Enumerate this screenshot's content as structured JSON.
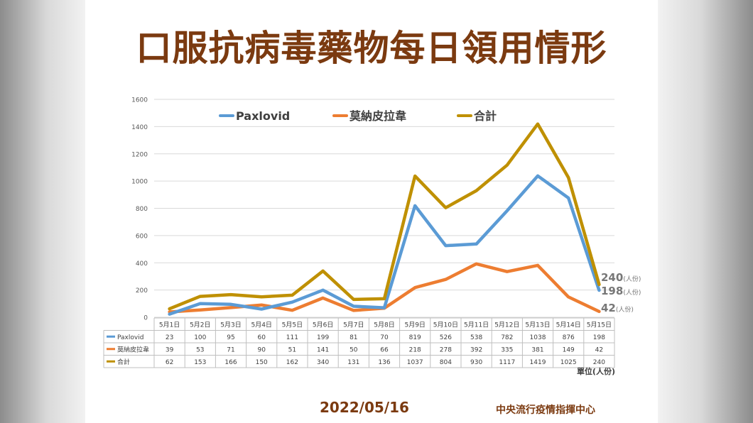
{
  "title": "口服抗病毒藥物每日領用情形",
  "footer": {
    "date": "2022/05/16",
    "org": "中央流行疫情指揮中心"
  },
  "chart_data": {
    "type": "line",
    "categories": [
      "5月1日",
      "5月2日",
      "5月3日",
      "5月4日",
      "5月5日",
      "5月6日",
      "5月7日",
      "5月8日",
      "5月9日",
      "5月10日",
      "5月11日",
      "5月12日",
      "5月13日",
      "5月14日",
      "5月15日"
    ],
    "series": [
      {
        "name": "Paxlovid",
        "color": "#5b9bd5",
        "values": [
          23,
          100,
          95,
          60,
          111,
          199,
          81,
          70,
          819,
          526,
          538,
          782,
          1038,
          876,
          198
        ]
      },
      {
        "name": "莫納皮拉韋",
        "color": "#ed7d31",
        "values": [
          39,
          53,
          71,
          90,
          51,
          141,
          50,
          66,
          218,
          278,
          392,
          335,
          381,
          149,
          42
        ]
      },
      {
        "name": "合計",
        "color": "#bf9000",
        "values": [
          62,
          153,
          166,
          150,
          162,
          340,
          131,
          136,
          1037,
          804,
          930,
          1117,
          1419,
          1025,
          240
        ]
      }
    ],
    "yticks": [
      "0",
      "200",
      "400",
      "600",
      "800",
      "1000",
      "1200",
      "1400",
      "1600"
    ],
    "ylim": [
      0,
      1600
    ],
    "legend_position": "top",
    "grid": true,
    "end_labels": [
      {
        "value": "240",
        "unit": "(人份)",
        "color": "#777777"
      },
      {
        "value": "198",
        "unit": "(人份)",
        "color": "#777777"
      },
      {
        "value": "42",
        "unit": "(人份)",
        "color": "#777777"
      }
    ],
    "unit_note": "單位(人份)"
  }
}
